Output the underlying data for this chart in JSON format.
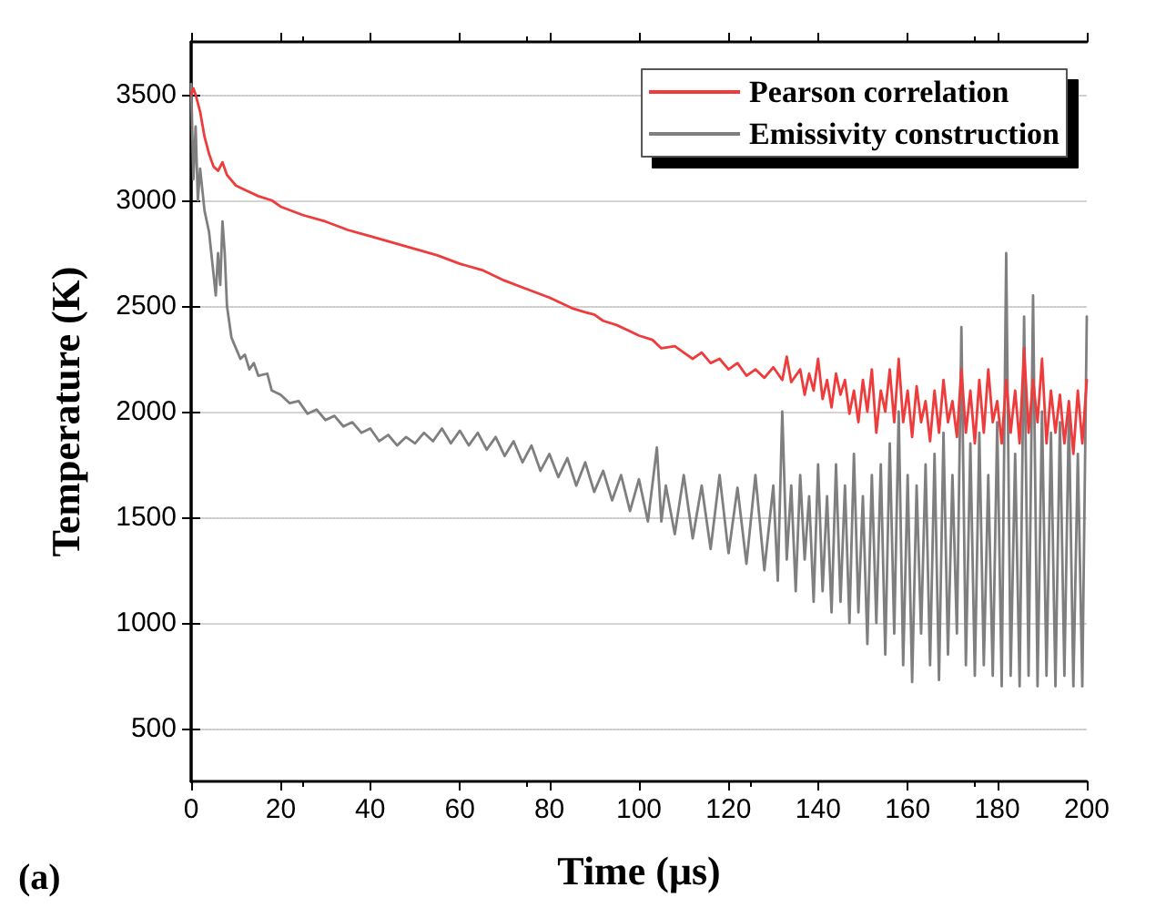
{
  "chart_data": {
    "type": "line",
    "xlabel": "Time (μs)",
    "ylabel": "Temperature (K)",
    "annotations": [
      "(a)"
    ],
    "xlim": [
      0,
      200
    ],
    "xticks": [
      0,
      20,
      40,
      60,
      80,
      100,
      120,
      140,
      160,
      180,
      200
    ],
    "ylim": [
      250,
      3750
    ],
    "yticks": [
      500,
      1000,
      1500,
      2000,
      2500,
      3000,
      3500
    ],
    "grid": "y",
    "legend": "top right",
    "marker": "none",
    "line_style": "solid",
    "series": [
      {
        "name": "Pearson correlation",
        "color": "#ee3b3b",
        "x": [
          0,
          0.5,
          1,
          2,
          3,
          4,
          5,
          6,
          7,
          8,
          10,
          12,
          15,
          18,
          20,
          25,
          30,
          35,
          40,
          45,
          50,
          55,
          60,
          65,
          70,
          75,
          80,
          85,
          88,
          90,
          92,
          95,
          98,
          100,
          103,
          105,
          108,
          110,
          112,
          114,
          116,
          118,
          120,
          122,
          124,
          126,
          128,
          130,
          132,
          133,
          134,
          136,
          137,
          138,
          139,
          140,
          141,
          142,
          143,
          144,
          145,
          146,
          147,
          148,
          149,
          150,
          151,
          152,
          153,
          154,
          155,
          156,
          157,
          158,
          159,
          160,
          161,
          162,
          163,
          164,
          165,
          166,
          167,
          168,
          169,
          170,
          171,
          172,
          173,
          174,
          175,
          176,
          177,
          178,
          179,
          180,
          181,
          182,
          183,
          184,
          185,
          186,
          187,
          188,
          189,
          190,
          191,
          192,
          193,
          194,
          195,
          196,
          197,
          198,
          199,
          200
        ],
        "values": [
          3500,
          3530,
          3500,
          3420,
          3300,
          3220,
          3160,
          3140,
          3180,
          3120,
          3070,
          3050,
          3020,
          3000,
          2970,
          2930,
          2900,
          2860,
          2830,
          2800,
          2770,
          2740,
          2700,
          2670,
          2620,
          2580,
          2540,
          2490,
          2470,
          2460,
          2430,
          2410,
          2380,
          2360,
          2340,
          2300,
          2310,
          2280,
          2250,
          2280,
          2230,
          2250,
          2200,
          2230,
          2170,
          2200,
          2160,
          2210,
          2150,
          2260,
          2140,
          2200,
          2080,
          2180,
          2100,
          2250,
          2060,
          2150,
          2020,
          2180,
          2080,
          2150,
          1990,
          2100,
          1950,
          2150,
          2000,
          2200,
          1900,
          2100,
          2000,
          2200,
          1950,
          2250,
          1950,
          2100,
          1880,
          2120,
          1950,
          2050,
          1860,
          2100,
          1900,
          2150,
          1950,
          2050,
          1880,
          2200,
          1900,
          2100,
          1850,
          2150,
          1900,
          2200,
          1950,
          2050,
          1850,
          2150,
          1900,
          2100,
          1850,
          2300,
          1900,
          2150,
          1950,
          2250,
          1850,
          2100,
          1900,
          2080,
          1850,
          2050,
          1800,
          2100,
          1850,
          2150
        ]
      },
      {
        "name": "Emissivity construction",
        "color": "#7f7f7f",
        "x": [
          0,
          0.5,
          1,
          1.5,
          2,
          3,
          4,
          5,
          5.5,
          6,
          6.5,
          7,
          7.5,
          8,
          9,
          10,
          11,
          12,
          13,
          14,
          15,
          17,
          18,
          20,
          22,
          24,
          26,
          28,
          30,
          32,
          34,
          36,
          38,
          40,
          42,
          44,
          46,
          48,
          50,
          52,
          54,
          56,
          58,
          60,
          62,
          64,
          66,
          68,
          70,
          72,
          74,
          76,
          78,
          80,
          82,
          84,
          86,
          88,
          90,
          92,
          94,
          96,
          98,
          100,
          102,
          104,
          105,
          106,
          108,
          110,
          112,
          114,
          116,
          118,
          120,
          122,
          124,
          126,
          128,
          130,
          131,
          132,
          133,
          134,
          135,
          136,
          137,
          138,
          139,
          140,
          141,
          142,
          143,
          144,
          145,
          146,
          147,
          148,
          149,
          150,
          151,
          152,
          153,
          154,
          155,
          156,
          157,
          158,
          159,
          160,
          161,
          162,
          163,
          164,
          165,
          166,
          167,
          168,
          169,
          170,
          171,
          172,
          173,
          174,
          175,
          176,
          177,
          178,
          179,
          180,
          181,
          182,
          183,
          184,
          185,
          186,
          187,
          188,
          189,
          190,
          191,
          192,
          193,
          194,
          195,
          196,
          197,
          198,
          199,
          200
        ],
        "values": [
          3550,
          3100,
          3350,
          3000,
          3150,
          2950,
          2850,
          2650,
          2550,
          2750,
          2600,
          2900,
          2750,
          2500,
          2350,
          2300,
          2250,
          2270,
          2200,
          2230,
          2170,
          2180,
          2100,
          2080,
          2040,
          2050,
          1990,
          2010,
          1960,
          1980,
          1930,
          1950,
          1900,
          1920,
          1860,
          1890,
          1840,
          1880,
          1850,
          1900,
          1860,
          1920,
          1850,
          1910,
          1840,
          1900,
          1820,
          1880,
          1790,
          1860,
          1760,
          1840,
          1720,
          1800,
          1690,
          1780,
          1650,
          1760,
          1620,
          1720,
          1580,
          1700,
          1530,
          1680,
          1480,
          1830,
          1480,
          1650,
          1420,
          1700,
          1400,
          1650,
          1350,
          1700,
          1330,
          1640,
          1280,
          1700,
          1250,
          1650,
          1200,
          2000,
          1300,
          1650,
          1150,
          1700,
          1300,
          1600,
          1100,
          1750,
          1150,
          1600,
          1050,
          1750,
          1100,
          1650,
          1000,
          1800,
          1050,
          1600,
          900,
          1700,
          1000,
          1750,
          850,
          1850,
          950,
          2000,
          800,
          1700,
          720,
          1650,
          950,
          1750,
          800,
          1800,
          730,
          1900,
          850,
          1700,
          950,
          2400,
          800,
          1850,
          750,
          1900,
          800,
          1700,
          750,
          1950,
          700,
          2750,
          750,
          1800,
          700,
          2450,
          750,
          2550,
          700,
          2000,
          750,
          1900,
          700,
          1950,
          750,
          2000,
          700,
          1800,
          700,
          2450
        ]
      }
    ]
  }
}
